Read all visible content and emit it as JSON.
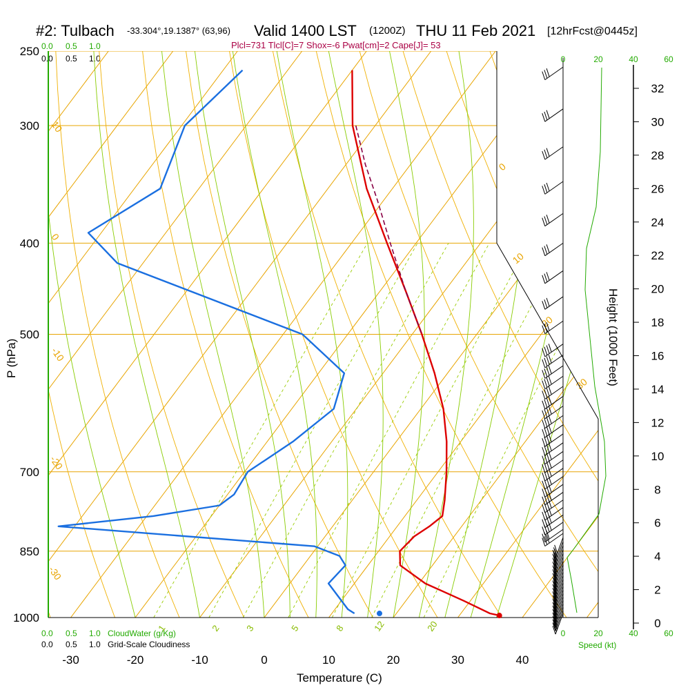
{
  "header": {
    "station": "#2: Tulbach",
    "coords": "-33.304°,19.1387° (63,96)",
    "valid": "Valid 1400 LST",
    "z": "(1200Z)",
    "date": "THU 11 Feb 2021",
    "fcst": "[12hrFcst@0445z]",
    "indices": "Plcl=731 Tlcl[C]=7 Shox=-6 Pwat[cm]=2 Cape[J]= 53"
  },
  "labels": {
    "xlabel": "Temperature (C)",
    "ylabel": "P (hPa)",
    "height_label": "Height (1000 Feet)",
    "speed_label": "Speed (kt)",
    "cloudwater": "CloudWater (g/Kg)",
    "cloudiness": "Grid-Scale Cloudiness"
  },
  "colors": {
    "isobar": "#e8a400",
    "dry_adiabat": "#f0b000",
    "moist_adiabat": "#88cc00",
    "mixing_ratio": "#99cc00",
    "temperature": "#dd0000",
    "dewpoint": "#1a6fe0",
    "parcel": "#880044",
    "wind_speed": "#22aa00",
    "green_text": "#22aa00"
  },
  "chart_data": {
    "type": "line",
    "title": "#2: Tulbach Valid 1400 LST THU 11 Feb 2021",
    "xlabel": "Temperature (C)",
    "ylabel": "P (hPa)",
    "pressure_ticks": [
      250,
      300,
      400,
      500,
      700,
      850,
      1000
    ],
    "temp_ticks": [
      -30,
      -20,
      -10,
      0,
      10,
      20,
      30,
      40
    ],
    "temp_range": [
      -33,
      46
    ],
    "pressure_range": [
      250,
      1000
    ],
    "height_ticks": [
      0,
      2,
      4,
      6,
      8,
      10,
      12,
      14,
      16,
      18,
      20,
      22,
      24,
      26,
      28,
      30,
      32
    ],
    "speed_ticks": [
      0,
      20,
      40,
      60
    ],
    "cloud_ticks": [
      "0.0",
      "0.5",
      "1.0"
    ],
    "isotherm_labels": [
      "10",
      "0",
      "-10",
      "-20",
      "-30",
      "0",
      "10",
      "20",
      "30"
    ],
    "mixing_ratio_labels": [
      "1",
      "2",
      "3",
      "5",
      "8",
      "12",
      "20"
    ],
    "series": [
      {
        "name": "Temperature",
        "p": [
          262,
          300,
          350,
          400,
          450,
          500,
          550,
          600,
          650,
          700,
          750,
          780,
          800,
          820,
          850,
          880,
          920,
          960,
          990,
          995
        ],
        "t": [
          -50.0,
          -43.5,
          -34.0,
          -24.5,
          -16.0,
          -8.5,
          -2.0,
          3.5,
          7.8,
          11.3,
          14.3,
          15.8,
          15.0,
          13.8,
          13.3,
          15.0,
          21.0,
          29.0,
          34.5,
          36.2
        ]
      },
      {
        "name": "Dewpoint",
        "p": [
          262,
          300,
          350,
          390,
          420,
          500,
          550,
          600,
          650,
          700,
          740,
          760,
          780,
          800,
          840,
          860,
          880,
          920,
          980,
          990
        ],
        "t": [
          -67.0,
          -69.5,
          -66.0,
          -72.0,
          -64.0,
          -27.0,
          -16.0,
          -13.5,
          -16.0,
          -19.5,
          -19.0,
          -20.0,
          -29.0,
          -42.5,
          -0.5,
          4.5,
          6.5,
          6.0,
          12.0,
          13.5
        ]
      },
      {
        "name": "Parcel",
        "p": [
          300,
          330,
          360,
          400,
          450,
          500
        ],
        "t": [
          -43.0,
          -37.0,
          -31.0,
          -24.0,
          -16.0,
          -8.5
        ]
      }
    ],
    "surface_dewpoint_marker": 17.8,
    "surface_temperature_marker": 36.2
  }
}
